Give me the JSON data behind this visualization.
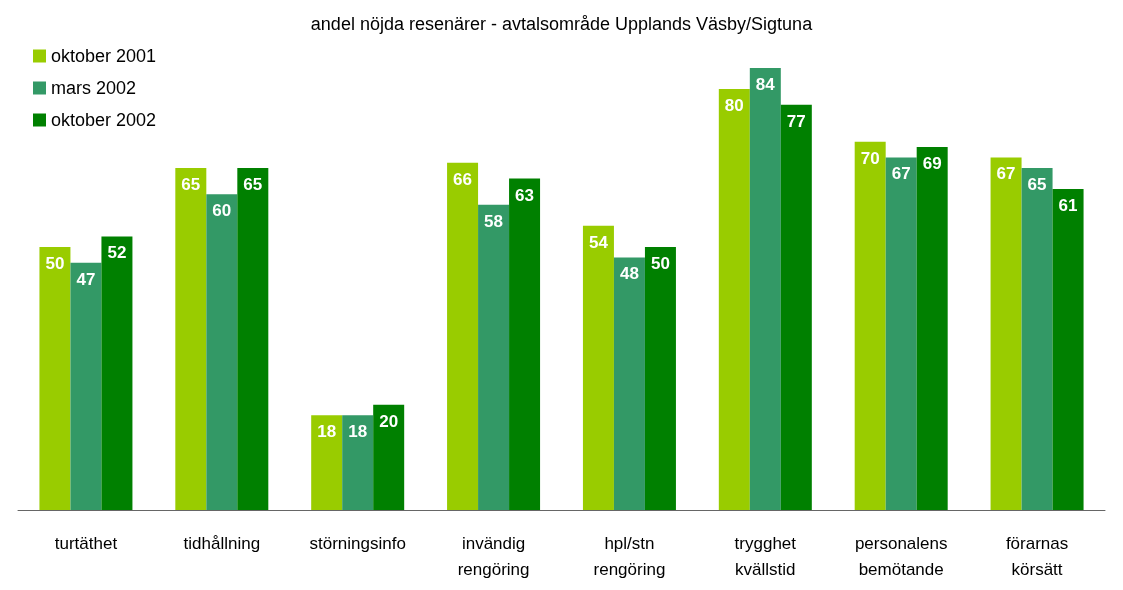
{
  "chart_data": {
    "type": "bar",
    "title": "andel nöjda resenärer - avtalsområde Upplands Väsby/Sigtuna",
    "categories": [
      "turtäthet",
      "tidhållning",
      "störningsinfo",
      "invändig\nrengöring",
      "hpl/stn\nrengöring",
      "trygghet\nkvällstid",
      "personalens\nbemötande",
      "förarnas\nkörsätt"
    ],
    "series": [
      {
        "name": "oktober 2001",
        "color": "#99cc00",
        "values": [
          50,
          65,
          18,
          66,
          54,
          80,
          70,
          67
        ]
      },
      {
        "name": "mars 2002",
        "color": "#339966",
        "values": [
          47,
          60,
          18,
          58,
          48,
          84,
          67,
          65
        ]
      },
      {
        "name": "oktober 2002",
        "color": "#008000",
        "values": [
          52,
          65,
          20,
          63,
          50,
          77,
          69,
          61
        ]
      }
    ],
    "data_labels": true,
    "legend": "top left",
    "grid": false
  }
}
